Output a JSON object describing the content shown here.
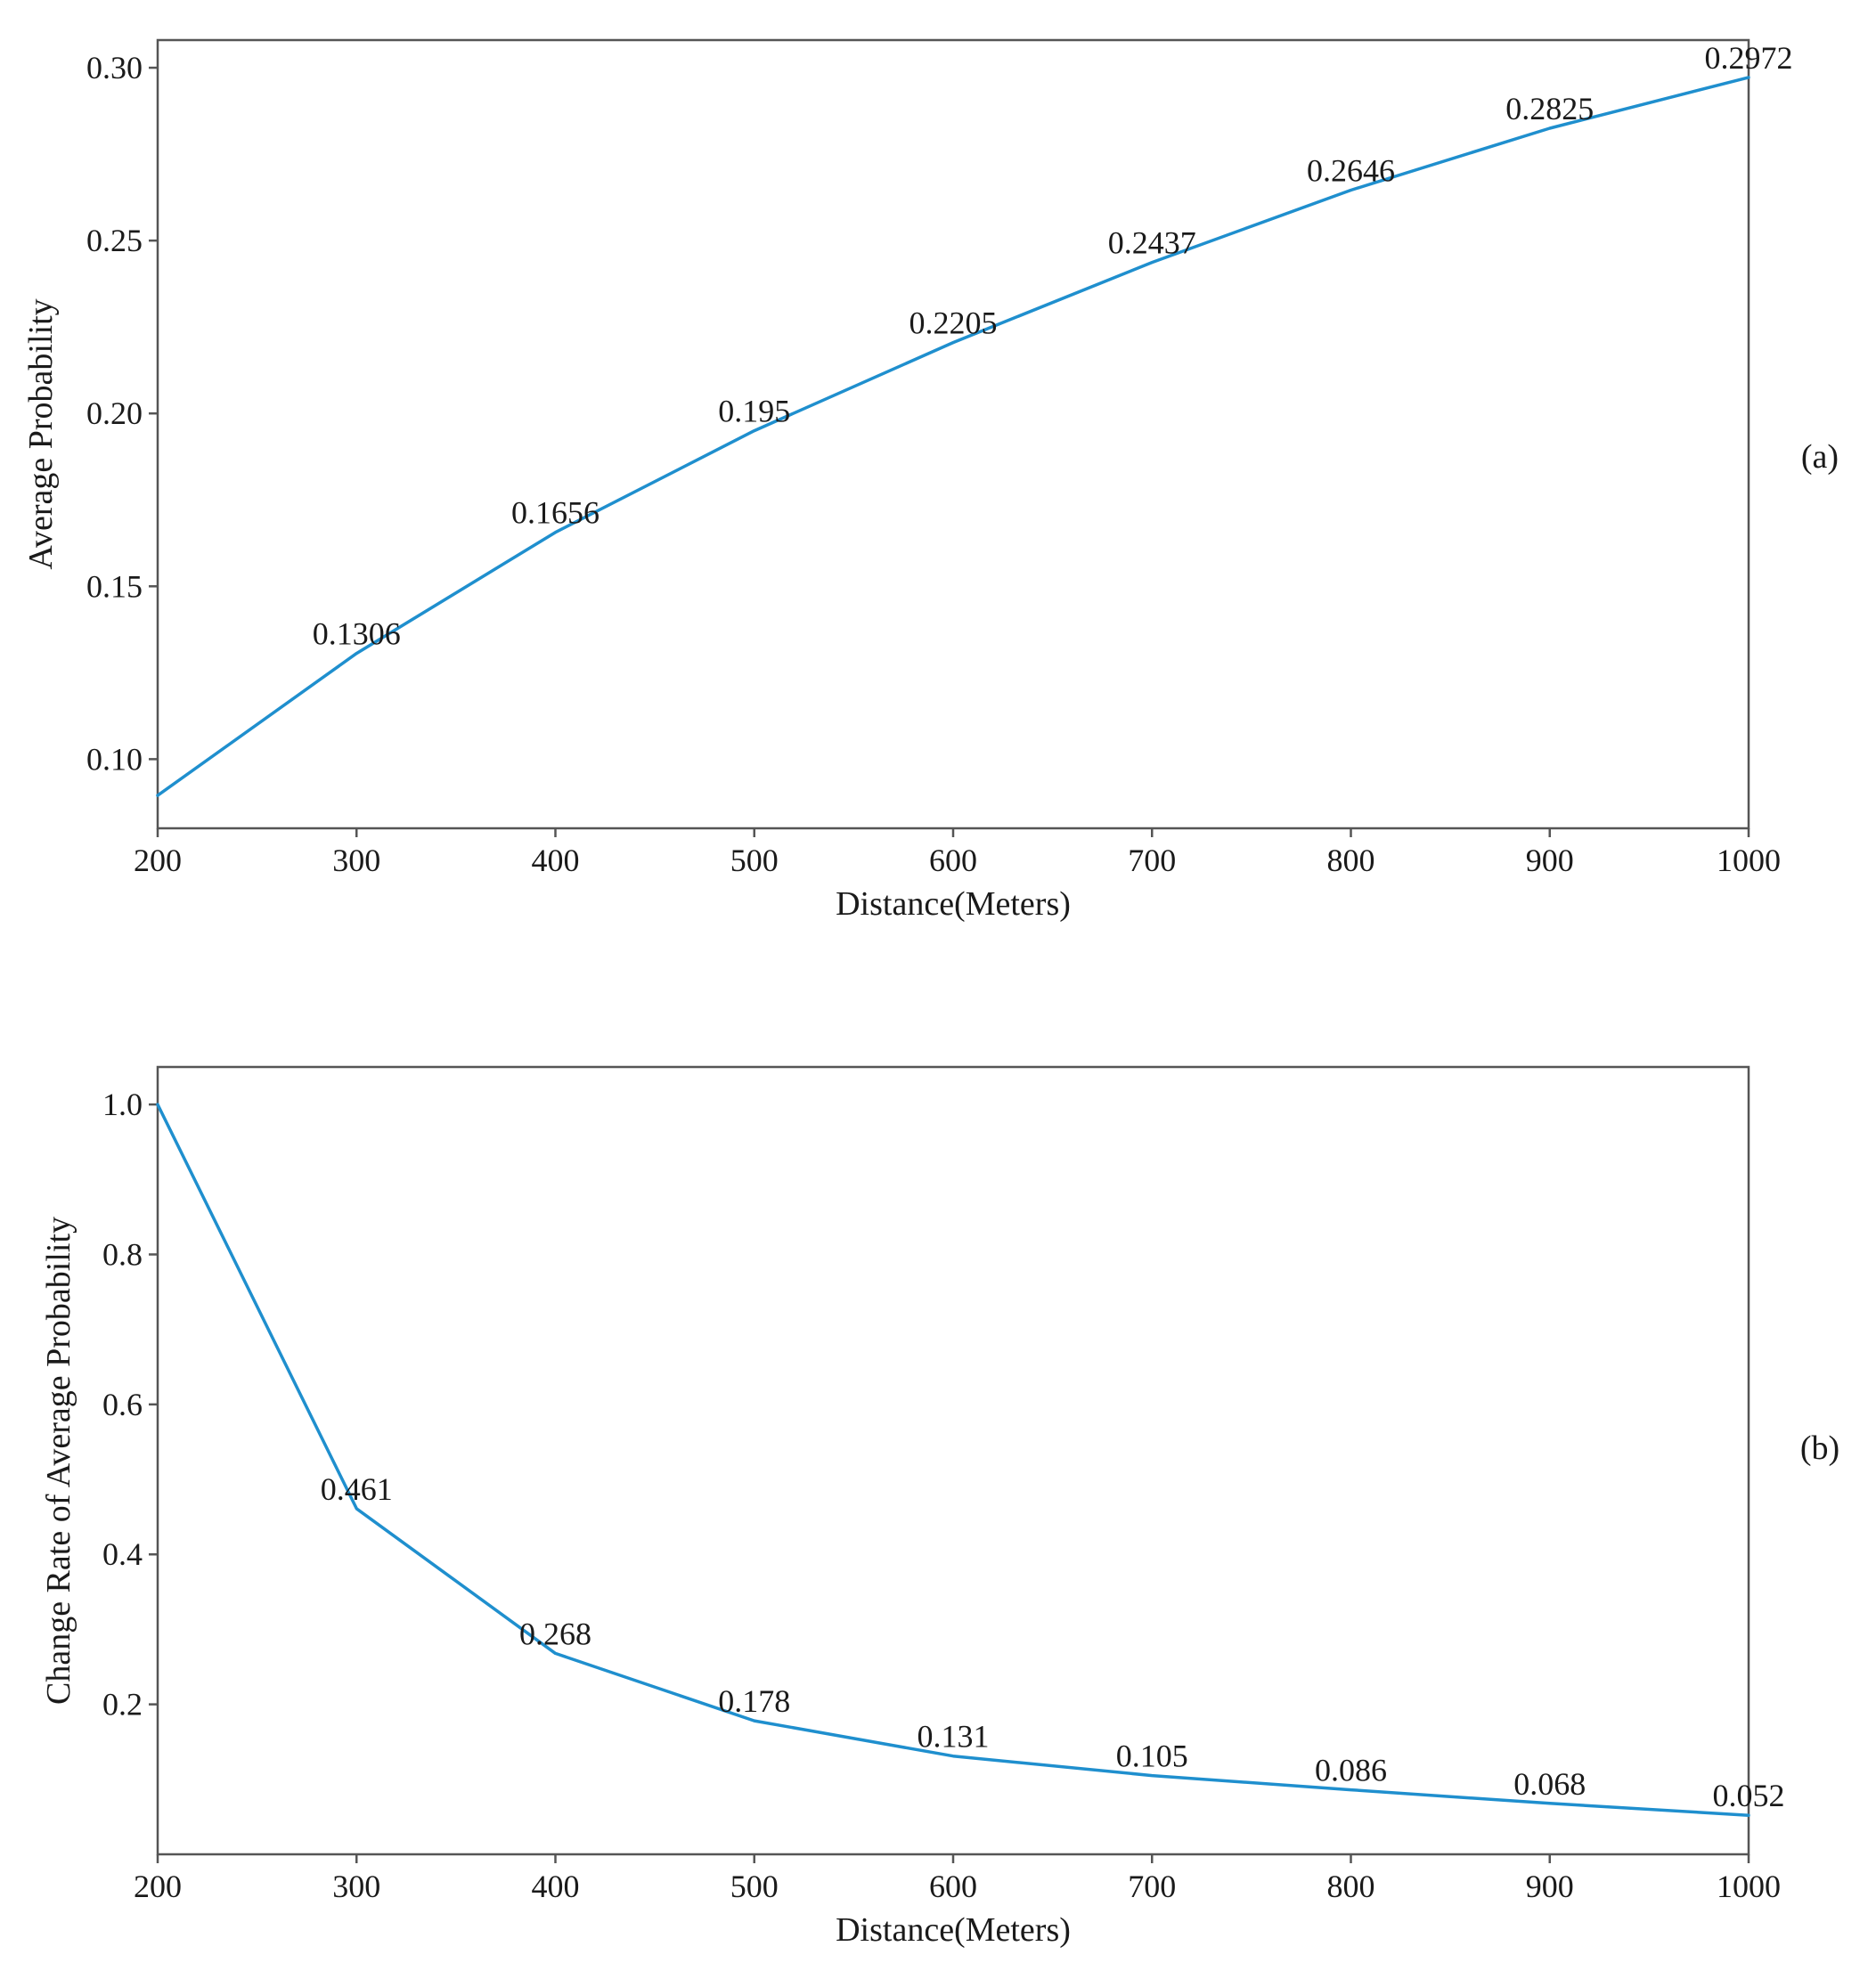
{
  "colors": {
    "series": "#1f8fce",
    "axis": "#555555",
    "text": "#1a1a1a"
  },
  "chart_data": [
    {
      "type": "line",
      "panel": "(a)",
      "xlabel": "Distance(Meters)",
      "ylabel": "Average Probability",
      "xlim": [
        200,
        1000
      ],
      "ylim": [
        0.08,
        0.308
      ],
      "xticks": [
        200,
        300,
        400,
        500,
        600,
        700,
        800,
        900,
        1000
      ],
      "xtick_labels": [
        "200",
        "300",
        "400",
        "500",
        "600",
        "700",
        "800",
        "900",
        "1000"
      ],
      "yticks": [
        0.1,
        0.15,
        0.2,
        0.25,
        0.3
      ],
      "ytick_labels": [
        "0.10",
        "0.15",
        "0.20",
        "0.25",
        "0.30"
      ],
      "x": [
        200,
        300,
        400,
        500,
        600,
        700,
        800,
        900,
        1000
      ],
      "y": [
        0.0895,
        0.1306,
        0.1656,
        0.195,
        0.2205,
        0.2437,
        0.2646,
        0.2825,
        0.2972
      ],
      "point_labels": [
        "",
        "0.1306",
        "0.1656",
        "0.195",
        "0.2205",
        "0.2437",
        "0.2646",
        "0.2825",
        "0.2972"
      ]
    },
    {
      "type": "line",
      "panel": "(b)",
      "xlabel": "Distance(Meters)",
      "ylabel": "Change Rate of  Average Probability",
      "xlim": [
        200,
        1000
      ],
      "ylim": [
        0.0,
        1.05
      ],
      "xticks": [
        200,
        300,
        400,
        500,
        600,
        700,
        800,
        900,
        1000
      ],
      "xtick_labels": [
        "200",
        "300",
        "400",
        "500",
        "600",
        "700",
        "800",
        "900",
        "1000"
      ],
      "yticks": [
        0.2,
        0.4,
        0.6,
        0.8,
        1.0
      ],
      "ytick_labels": [
        "0.2",
        "0.4",
        "0.6",
        "0.8",
        "1.0"
      ],
      "x": [
        200,
        300,
        400,
        500,
        600,
        700,
        800,
        900,
        1000
      ],
      "y": [
        1.0,
        0.461,
        0.268,
        0.178,
        0.131,
        0.105,
        0.086,
        0.068,
        0.052
      ],
      "point_labels": [
        "",
        "0.461",
        "0.268",
        "0.178",
        "0.131",
        "0.105",
        "0.086",
        "0.068",
        "0.052"
      ]
    }
  ]
}
